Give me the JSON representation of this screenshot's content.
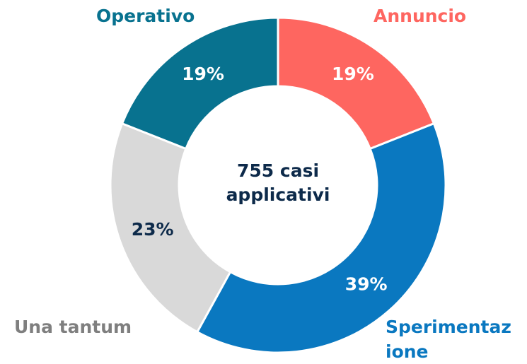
{
  "chart_data": {
    "type": "donut",
    "categories": [
      "Annuncio",
      "Sperimentazione",
      "Una tantum",
      "Operativo"
    ],
    "values": [
      19,
      39,
      23,
      19
    ],
    "value_labels": [
      "19%",
      "39%",
      "23%",
      "19%"
    ],
    "colors": [
      "#fe6660",
      "#0a78c0",
      "#d9d9d9",
      "#08728f"
    ],
    "label_colors": [
      "#fe6660",
      "#0a78c0",
      "#7f7f7f",
      "#08728f"
    ],
    "value_label_colors": [
      "#ffffff",
      "#ffffff",
      "#0d2a4a",
      "#ffffff"
    ],
    "center_text": "755 casi applicativi"
  }
}
